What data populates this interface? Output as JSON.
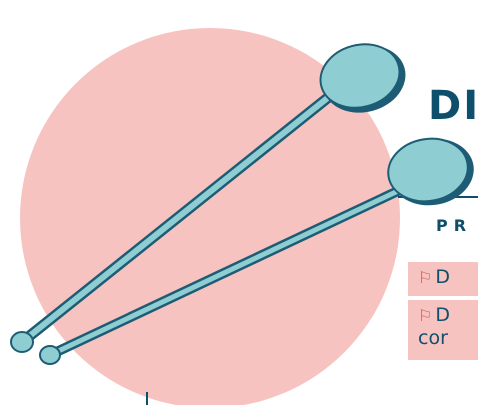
{
  "slide": {
    "title": "DI",
    "section_label": "PR",
    "items": [
      {
        "icon": "flag-icon",
        "text": "D"
      },
      {
        "icon": "flag-icon",
        "text": "D",
        "text2": "cor"
      }
    ]
  },
  "colors": {
    "circle": "#f6c3c0",
    "stick_fill": "#8ecdd2",
    "stick_outline": "#1d5c74",
    "title": "#0e4f6b",
    "flag": "#d9534f"
  }
}
